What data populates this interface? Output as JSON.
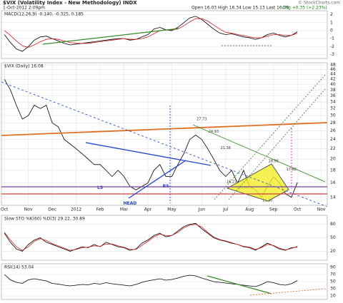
{
  "header": {
    "title": "$VIX (Volatility Index - New Methodology) INDX",
    "date": "1-Oct-2012 2:09pm",
    "quote": "Open 16.03  High 16.34  Low 15.13  Last 16.09",
    "change": "Chg +0.35 (+2.23%)",
    "credit": "© StockCharts.com"
  },
  "chart_data": [
    {
      "type": "line",
      "title": "MACD(12,26,9) -0.140, -0.325, 0.185",
      "ylim": [
        -3.5,
        2.5
      ],
      "yticks": [
        2,
        1,
        0,
        -1,
        -2,
        -3
      ],
      "series": [
        {
          "color": "#000000",
          "values": [
            -0.5,
            -1.5,
            -2.3,
            -2.6,
            -2.0,
            -1.2,
            -0.8,
            -0.7,
            -1.0,
            -1.3,
            -1.6,
            -1.8,
            -1.7,
            -1.6,
            -1.5,
            -1.4,
            -1.3,
            -1.2,
            -1.1,
            -1.0,
            -1.0,
            -1.2,
            -1.1,
            -0.8,
            -0.5,
            0.2,
            0.4,
            0.1,
            0.0,
            0.4,
            1.0,
            1.6,
            1.8,
            1.4,
            0.8,
            0.2,
            -0.3,
            -0.5,
            -0.4,
            -0.6,
            -0.8,
            -0.9,
            -1.1,
            -0.9,
            -0.5,
            -0.3,
            -0.6,
            -0.8,
            -0.6,
            -0.14
          ]
        },
        {
          "color": "#d02020",
          "values": [
            0.0,
            -0.6,
            -1.3,
            -1.9,
            -2.1,
            -1.8,
            -1.4,
            -1.1,
            -1.0,
            -1.1,
            -1.3,
            -1.5,
            -1.6,
            -1.6,
            -1.6,
            -1.5,
            -1.4,
            -1.3,
            -1.2,
            -1.1,
            -1.0,
            -1.1,
            -1.1,
            -1.0,
            -0.8,
            -0.4,
            0.0,
            0.1,
            0.1,
            0.2,
            0.6,
            1.1,
            1.5,
            1.5,
            1.2,
            0.7,
            0.2,
            -0.2,
            -0.3,
            -0.5,
            -0.6,
            -0.8,
            -0.9,
            -0.9,
            -0.7,
            -0.5,
            -0.5,
            -0.6,
            -0.6,
            -0.33
          ]
        }
      ]
    },
    {
      "type": "line",
      "title": "$VIX (Daily) 16.08",
      "log_scale": true,
      "ylim": [
        13,
        49
      ],
      "yticks": [
        14,
        16,
        18,
        20,
        22,
        24,
        26,
        28,
        30,
        32,
        34,
        36,
        38,
        40,
        42,
        44,
        46,
        48
      ],
      "xlim": [
        -0.5,
        54
      ],
      "xticks": [
        {
          "value": 0,
          "label": "Oct"
        },
        {
          "value": 4,
          "label": "Nov"
        },
        {
          "value": 8,
          "label": "Dec"
        },
        {
          "value": 12,
          "label": "2012"
        },
        {
          "value": 16,
          "label": "Feb"
        },
        {
          "value": 20,
          "label": "Mar"
        },
        {
          "value": 24,
          "label": "Apr"
        },
        {
          "value": 28,
          "label": "May"
        },
        {
          "value": 33,
          "label": "Jun"
        },
        {
          "value": 37,
          "label": "Jul"
        },
        {
          "value": 41,
          "label": "Aug"
        },
        {
          "value": 45,
          "label": "Sep"
        },
        {
          "value": 49,
          "label": "Oct"
        },
        {
          "value": 53,
          "label": "Nov"
        }
      ],
      "series": [
        {
          "color": "#000000",
          "values": [
            42,
            38,
            33,
            29,
            30,
            33,
            32,
            33,
            28,
            27,
            24,
            23,
            22,
            21,
            20,
            19,
            19,
            18,
            17,
            18,
            17,
            15.5,
            15,
            15.5,
            16,
            18,
            19,
            17,
            17,
            19,
            21,
            24,
            25,
            24,
            22,
            20,
            18,
            17,
            18,
            16,
            18,
            15.5,
            15,
            14,
            15.5,
            17,
            16,
            14.5,
            14,
            16.1
          ]
        }
      ],
      "annotations": [
        {
          "text": "27.73",
          "x": 33,
          "y": 29
        },
        {
          "text": "24.93",
          "x": 35,
          "y": 25.8
        },
        {
          "text": "21.36",
          "x": 37,
          "y": 22.2
        },
        {
          "text": "16.27",
          "x": 38,
          "y": 16.2
        },
        {
          "text": "15.86",
          "x": 40,
          "y": 15.3
        },
        {
          "text": "18.96",
          "x": 45,
          "y": 19.6
        },
        {
          "text": "17.88",
          "x": 48,
          "y": 18.2
        },
        {
          "text": "13.30",
          "x": 44,
          "y": 13.6
        },
        {
          "text": "HEAD",
          "x": 21,
          "y": 13.2
        },
        {
          "text": "LS",
          "x": 16,
          "y": 15.3
        },
        {
          "text": "RS",
          "x": 27,
          "y": 15.5
        }
      ]
    },
    {
      "type": "line",
      "title": "Slow STO %K(60) %D(3) 29.22, 30.89",
      "ylim": [
        0,
        100
      ],
      "yticks": [
        80,
        50,
        20
      ],
      "series": [
        {
          "color": "#000000",
          "values": [
            60,
            40,
            25,
            20,
            35,
            45,
            50,
            40,
            35,
            30,
            25,
            20,
            25,
            30,
            28,
            35,
            30,
            40,
            35,
            30,
            28,
            22,
            25,
            38,
            45,
            55,
            60,
            52,
            55,
            65,
            75,
            80,
            82,
            70,
            60,
            50,
            45,
            42,
            38,
            35,
            30,
            28,
            22,
            30,
            38,
            32,
            25,
            22,
            28,
            29
          ]
        },
        {
          "color": "#d02020",
          "values": [
            62,
            45,
            30,
            22,
            30,
            42,
            48,
            44,
            37,
            32,
            27,
            22,
            24,
            28,
            29,
            32,
            31,
            36,
            36,
            32,
            29,
            24,
            24,
            33,
            42,
            52,
            58,
            55,
            55,
            62,
            72,
            78,
            80,
            74,
            62,
            52,
            46,
            43,
            39,
            35,
            31,
            29,
            24,
            28,
            35,
            33,
            27,
            23,
            26,
            31
          ]
        }
      ]
    },
    {
      "type": "line",
      "title": "RSI(14) 53.04",
      "ylim": [
        0,
        100
      ],
      "yticks": [
        90,
        70,
        50,
        30,
        10
      ],
      "series": [
        {
          "color": "#000000",
          "values": [
            70,
            55,
            48,
            45,
            55,
            58,
            55,
            52,
            45,
            43,
            40,
            38,
            40,
            42,
            41,
            45,
            43,
            47,
            44,
            42,
            40,
            38,
            42,
            48,
            52,
            55,
            58,
            54,
            56,
            60,
            65,
            68,
            66,
            60,
            55,
            50,
            48,
            46,
            44,
            42,
            40,
            38,
            36,
            42,
            50,
            47,
            42,
            40,
            44,
            53
          ]
        }
      ]
    }
  ]
}
